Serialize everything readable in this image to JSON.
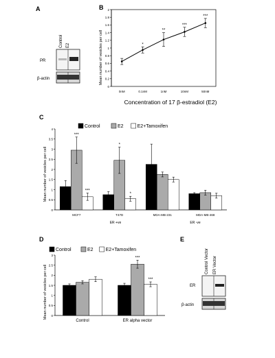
{
  "panels": {
    "a": {
      "letter": "A",
      "lanes": [
        "Control",
        "E2"
      ],
      "rows": [
        "PR",
        "β-actin"
      ]
    },
    "b": {
      "letter": "B",
      "ylabel": "Mean number of vesicles per cell",
      "xlabel": "Concentration of 17 β-estradiol (E2)"
    },
    "c": {
      "letter": "C",
      "ylabel": "Mean number of vesicles per cell",
      "groups": [
        "ER +ve",
        "ER -ve"
      ]
    },
    "d": {
      "letter": "D",
      "ylabel": "Mean number of vesicles per cell"
    },
    "e": {
      "letter": "E",
      "lanes": [
        "Control Vector",
        "ER Vector"
      ],
      "rows": [
        "ER",
        "β-actin"
      ]
    }
  },
  "colors": {
    "control": "#000000",
    "e2": "#aaaaaa",
    "e2_tamoxifen": "#ffffff",
    "line": "#000000"
  },
  "chart_data": [
    {
      "id": "B",
      "type": "line",
      "categories": [
        "0nM",
        "0.1nM",
        "1nM",
        "10nM",
        "50nM"
      ],
      "series": [
        {
          "values": [
            0.65,
            0.95,
            1.22,
            1.42,
            1.65
          ],
          "errors": [
            0.08,
            0.08,
            0.18,
            0.12,
            0.12
          ],
          "significance": [
            "",
            "*",
            "**",
            "***",
            "***"
          ]
        }
      ],
      "yticks": [
        "0",
        "0.2",
        "0.4",
        "0.6",
        "0.8",
        "1",
        "1.2",
        "1.4",
        "1.6",
        "1.8",
        "2"
      ],
      "ylim": [
        0,
        2
      ],
      "xlabel": "Concentration of 17 β-estradiol (E2)",
      "ylabel": "Mean number of vesicles per cell"
    },
    {
      "id": "C",
      "type": "bar",
      "categories": [
        "MCF7",
        "T47D",
        "MDA-MB-231",
        "MDA-MB-468"
      ],
      "series": [
        {
          "name": "Control",
          "values": [
            1.15,
            0.75,
            2.25,
            0.8
          ],
          "errors": [
            0.3,
            0.15,
            1.0,
            0.05
          ],
          "significance": [
            "",
            "",
            "",
            ""
          ]
        },
        {
          "name": "E2",
          "values": [
            2.95,
            2.45,
            1.75,
            0.85
          ],
          "errors": [
            0.65,
            0.65,
            0.12,
            0.12
          ],
          "significance": [
            "***",
            "*",
            "",
            ""
          ]
        },
        {
          "name": "E2+Tamoxifen",
          "values": [
            0.65,
            0.55,
            1.5,
            0.7
          ],
          "errors": [
            0.18,
            0.12,
            0.12,
            0.12
          ],
          "significance": [
            "***",
            "*",
            "",
            ""
          ]
        }
      ],
      "yticks": [
        "0",
        "0.5",
        "1",
        "1.5",
        "2",
        "2.5",
        "3",
        "3.5",
        "4"
      ],
      "ylim": [
        0,
        4
      ],
      "groups": [
        {
          "label": "ER +ve",
          "categories": [
            "MCF7",
            "T47D"
          ]
        },
        {
          "label": "ER -ve",
          "categories": [
            "MDA-MB-231",
            "MDA-MB-468"
          ]
        }
      ],
      "ylabel": "Mean number of vesicles per cell",
      "legend": "top"
    },
    {
      "id": "D",
      "type": "bar",
      "categories": [
        "Control",
        "ER alpha vector"
      ],
      "series": [
        {
          "name": "Control",
          "values": [
            1.5,
            1.5
          ],
          "errors": [
            0.07,
            0.1
          ],
          "significance": [
            "",
            ""
          ]
        },
        {
          "name": "E2",
          "values": [
            1.65,
            2.55
          ],
          "errors": [
            0.08,
            0.2
          ],
          "significance": [
            "",
            "***"
          ]
        },
        {
          "name": "E2+Tamoxifen",
          "values": [
            1.8,
            1.55
          ],
          "errors": [
            0.12,
            0.12
          ],
          "significance": [
            "",
            "***"
          ]
        }
      ],
      "yticks": [
        "0",
        "0.5",
        "1",
        "1.5",
        "2",
        "2.5",
        "3"
      ],
      "ylim": [
        0,
        3
      ],
      "ylabel": "Mean number of vesicles per cell",
      "legend": "top"
    }
  ]
}
